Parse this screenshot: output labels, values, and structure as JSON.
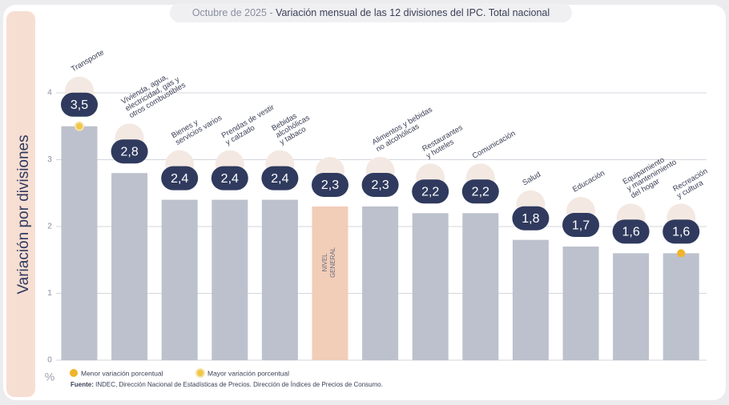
{
  "chart_data": {
    "type": "bar",
    "title_prefix": "Octubre de 2025 -",
    "title": "Variación mensual de las 12 divisiones del IPC. Total nacional",
    "y_label": "Variación por divisiones",
    "unit_label": "%",
    "categories": [
      "Transporte",
      "Vivienda, agua,\nelectricidad, gas y\notros combustibles",
      "Bienes y\nservicios varios",
      "Prendas de vestir\ny calzado",
      "Bebidas\nalcohólicas\ny tabaco",
      "NIVEL\nGENERAL",
      "Alimentos y bebidas\nno alcohólicas",
      "Restaurantes\ny hoteles",
      "Comunicación",
      "Salud",
      "Educación",
      "Equipamiento\ny mantenimiento\ndel hogar",
      "Recreación\ny cultura"
    ],
    "values": [
      3.5,
      2.8,
      2.4,
      2.4,
      2.4,
      2.3,
      2.3,
      2.2,
      2.2,
      1.8,
      1.7,
      1.6,
      1.6
    ],
    "value_labels": [
      "3,5",
      "2,8",
      "2,4",
      "2,4",
      "2,4",
      "2,3",
      "2,3",
      "2,2",
      "2,2",
      "1,8",
      "1,7",
      "1,6",
      "1,6"
    ],
    "color": "#bcc1cd",
    "highlight_color": "#f2cdb8",
    "highlight_index": 5,
    "badge_color": "#2f3a5e",
    "ylim": [
      0,
      4
    ],
    "yticks": [
      0,
      1,
      2,
      3,
      4
    ],
    "grid": true,
    "legend": [
      {
        "label": "Menor variación porcentual",
        "color": "#f0b429",
        "index": 12
      },
      {
        "label": "Mayor variación porcentual",
        "color": "#f0c64a",
        "index": 0
      }
    ],
    "source_label": "Fuente:",
    "source": "INDEC, Dirección Nacional de Estadísticas de Precios. Dirección de Índices de Precios de Consumo."
  }
}
